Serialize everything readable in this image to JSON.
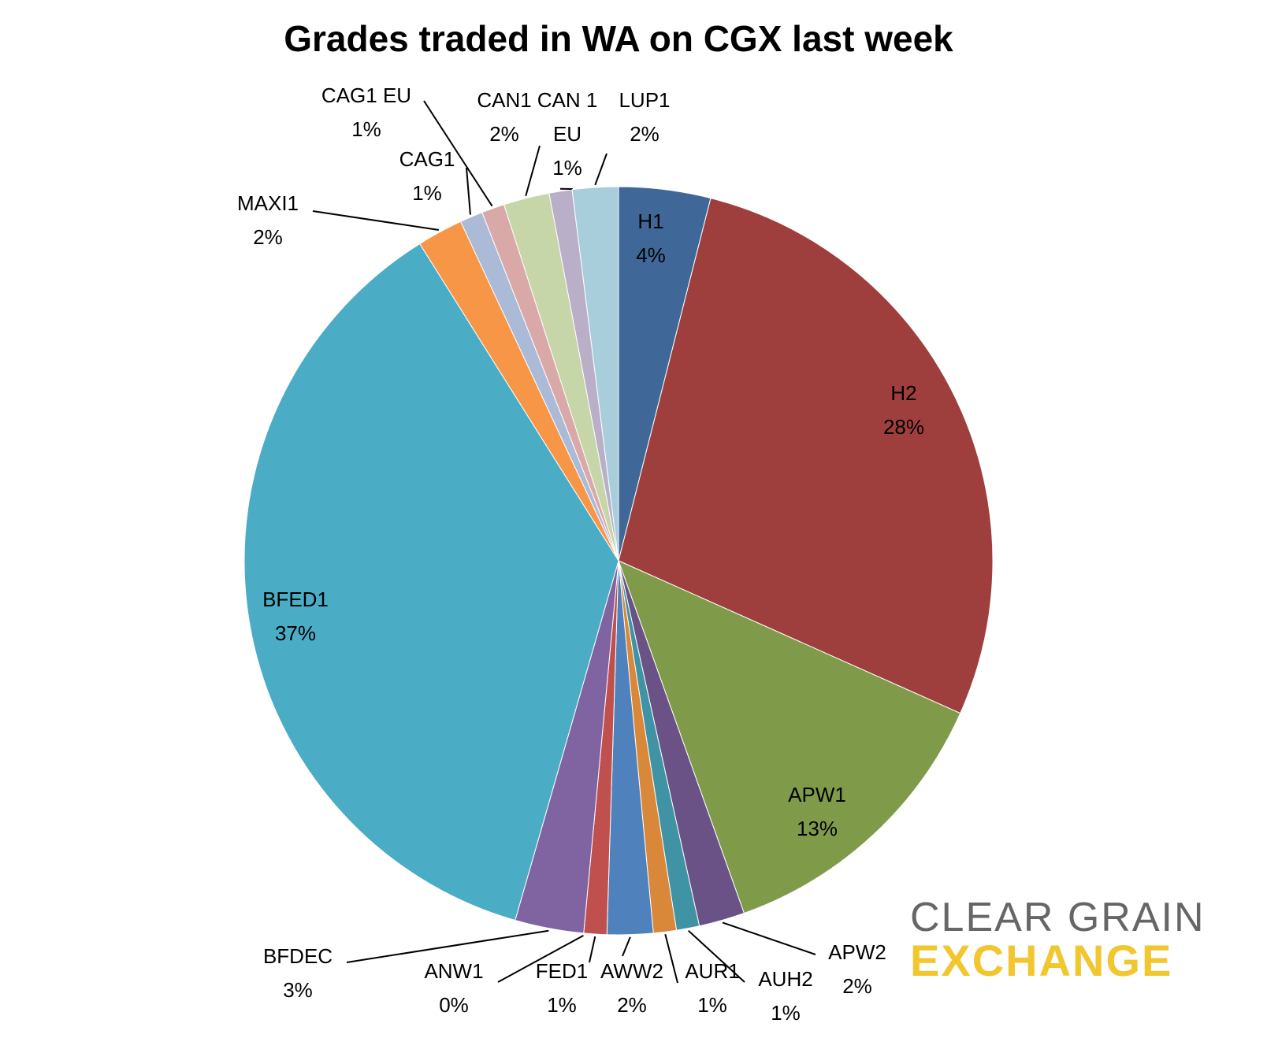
{
  "chart_data": {
    "type": "pie",
    "title": "Grades traded in WA on CGX last week",
    "categories": [
      "H1",
      "H2",
      "APW1",
      "APW2",
      "AUH2",
      "AUR1",
      "AWW2",
      "FED1",
      "ANW1",
      "BFDEC",
      "BFED1",
      "MAXI1",
      "CAG1",
      "CAG1 EU",
      "CAN1",
      "CAN 1 EU",
      "LUP1"
    ],
    "values": [
      4,
      28,
      13,
      2,
      1,
      1,
      2,
      1,
      0,
      3,
      37,
      2,
      1,
      1,
      2,
      1,
      2
    ],
    "value_labels": [
      "4%",
      "28%",
      "13%",
      "2%",
      "1%",
      "1%",
      "2%",
      "1%",
      "0%",
      "3%",
      "37%",
      "2%",
      "1%",
      "1%",
      "2%",
      "1%",
      "2%"
    ],
    "colors": [
      "#3f6899",
      "#9e3f3e",
      "#7f9b4a",
      "#6a5287",
      "#3f93a4",
      "#d98839",
      "#4f81bd",
      "#c0504d",
      "#9bbb59",
      "#8064a2",
      "#4bacc6",
      "#f79646",
      "#aabad7",
      "#d9a9a8",
      "#c6d6a9",
      "#b9afc9",
      "#a8cedc"
    ]
  },
  "logo": {
    "line1": "CLEAR GRAIN",
    "line2": "EXCHANGE"
  }
}
